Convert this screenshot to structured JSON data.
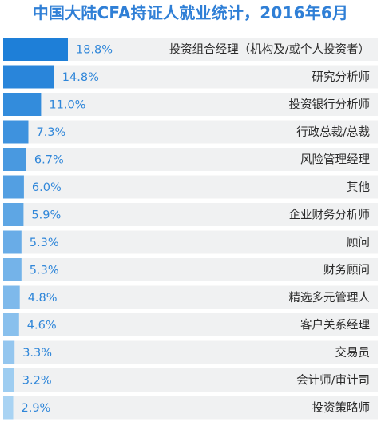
{
  "chart_data": {
    "type": "bar",
    "orientation": "horizontal",
    "title": "中国大陆CFA持证人就业统计，2016年6月",
    "categories": [
      "投资组合经理（机构及/或个人投资者）",
      "研究分析师",
      "投资银行分析师",
      "行政总裁/总裁",
      "风险管理经理",
      "其他",
      "企业财务分析师",
      "顾问",
      "财务顾问",
      "精选多元管理人",
      "客户关系经理",
      "交易员",
      "会计师/审计司",
      "投资策略师"
    ],
    "values": [
      18.8,
      14.8,
      11.0,
      7.3,
      6.7,
      6.0,
      5.9,
      5.3,
      5.3,
      4.8,
      4.6,
      3.3,
      3.2,
      2.9
    ],
    "value_labels": [
      "18.8%",
      "14.8%",
      "11.0%",
      "7.3%",
      "6.7%",
      "6.0%",
      "5.9%",
      "5.3%",
      "5.3%",
      "4.8%",
      "4.6%",
      "3.3%",
      "3.2%",
      "2.9%"
    ],
    "xlim": [
      0,
      18.8
    ],
    "grid": false,
    "legend": "none"
  },
  "colors": {
    "title": "#2f7fd6",
    "value_text": "#2f86d9",
    "row_background": "#f0f1f2",
    "bar_dark": "#1e7fd8",
    "bar_light": "#a9d3f3"
  }
}
